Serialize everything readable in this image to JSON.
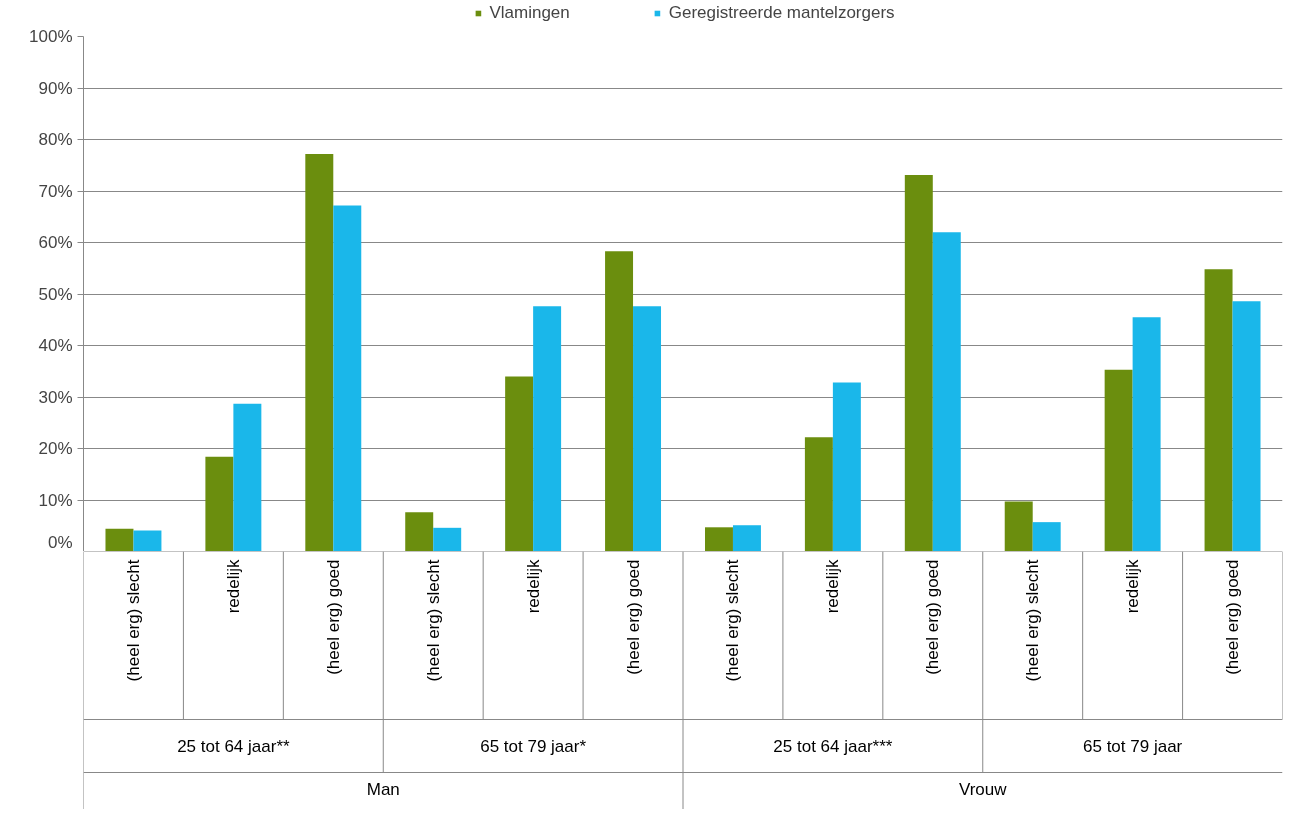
{
  "chart_data": {
    "type": "bar",
    "categories": [
      "(heel erg) slecht",
      "redelijk",
      "(heel erg) goed",
      "(heel erg) slecht",
      "redelijk",
      "(heel erg) goed",
      "(heel erg) slecht",
      "redelijk",
      "(heel erg) goed",
      "(heel erg) slecht",
      "redelijk",
      "(heel erg) goed"
    ],
    "series": [
      {
        "name": "Vlamingen",
        "color": "#6b8e0e",
        "values": [
          4.4,
          18.4,
          77.2,
          7.6,
          34.0,
          58.3,
          4.7,
          22.2,
          73.1,
          9.7,
          35.3,
          54.8
        ]
      },
      {
        "name": "Geregistreerde mantelzorgers",
        "color": "#1ab7ea",
        "values": [
          4.1,
          28.7,
          67.2,
          4.6,
          47.6,
          47.6,
          5.1,
          32.8,
          62.0,
          5.7,
          45.5,
          48.6
        ]
      }
    ],
    "annotations": [
      "25 tot 64 jaar**",
      "65 tot 79 jaar*",
      "25 tot 64 jaar***",
      "65 tot 79 jaar",
      "Man",
      "Vrouw"
    ],
    "ylim": [
      0,
      100
    ],
    "yticks": [
      {
        "value": 0,
        "label": "0%"
      },
      {
        "value": 10,
        "label": "10%"
      },
      {
        "value": 20,
        "label": "20%"
      },
      {
        "value": 30,
        "label": "30%"
      },
      {
        "value": 40,
        "label": "40%"
      },
      {
        "value": 50,
        "label": "50%"
      },
      {
        "value": 60,
        "label": "60%"
      },
      {
        "value": 70,
        "label": "70%"
      },
      {
        "value": 80,
        "label": "80%"
      },
      {
        "value": 90,
        "label": "90%"
      },
      {
        "value": 100,
        "label": "100%"
      }
    ],
    "grid": "y",
    "legend": "top"
  }
}
